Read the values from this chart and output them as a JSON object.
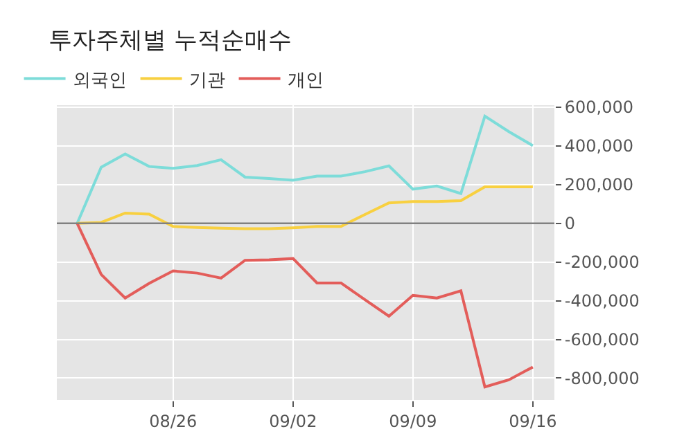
{
  "chart_data": {
    "type": "line",
    "title": "투자주체별 누적순매수",
    "categories": [
      null,
      null,
      null,
      null,
      "08/26",
      null,
      null,
      null,
      null,
      "09/02",
      null,
      null,
      null,
      null,
      "09/09",
      null,
      null,
      null,
      null,
      "09/16"
    ],
    "series": [
      {
        "name": "외국인",
        "color": "#7ddcd9",
        "values": [
          0,
          290000,
          359000,
          294000,
          285000,
          299000,
          329000,
          239000,
          232000,
          223000,
          244000,
          244000,
          267000,
          297000,
          177000,
          193000,
          154000,
          554000,
          474000,
          402000
        ]
      },
      {
        "name": "기관",
        "color": "#f8d040",
        "values": [
          0,
          5000,
          53000,
          48000,
          -16000,
          -21000,
          -25000,
          -28000,
          -28000,
          -23000,
          -16000,
          -16000,
          46000,
          106000,
          113000,
          113000,
          117000,
          189000,
          189000,
          189000
        ]
      },
      {
        "name": "개인",
        "color": "#e35d5a",
        "values": [
          0,
          -264000,
          -386000,
          -310000,
          -246000,
          -257000,
          -283000,
          -191000,
          -189000,
          -182000,
          -308000,
          -308000,
          -395000,
          -480000,
          -372000,
          -386000,
          -349000,
          -846000,
          -809000,
          -743000
        ]
      }
    ],
    "ylim": [
      -913000,
      611000
    ],
    "yticks": [
      {
        "value": 600000,
        "label": "600,000"
      },
      {
        "value": 400000,
        "label": "400,000"
      },
      {
        "value": 200000,
        "label": "200,000"
      },
      {
        "value": 0,
        "label": "0"
      },
      {
        "value": -200000,
        "label": "-200,000"
      },
      {
        "value": -400000,
        "label": "-400,000"
      },
      {
        "value": -600000,
        "label": "-600,000"
      },
      {
        "value": -800000,
        "label": "-800,000"
      }
    ],
    "ref_lines": [
      {
        "axis": "y",
        "value": 0,
        "color": "#808080"
      }
    ],
    "grid": true,
    "legend": "top left",
    "marker": "none",
    "line_style": "solid"
  }
}
